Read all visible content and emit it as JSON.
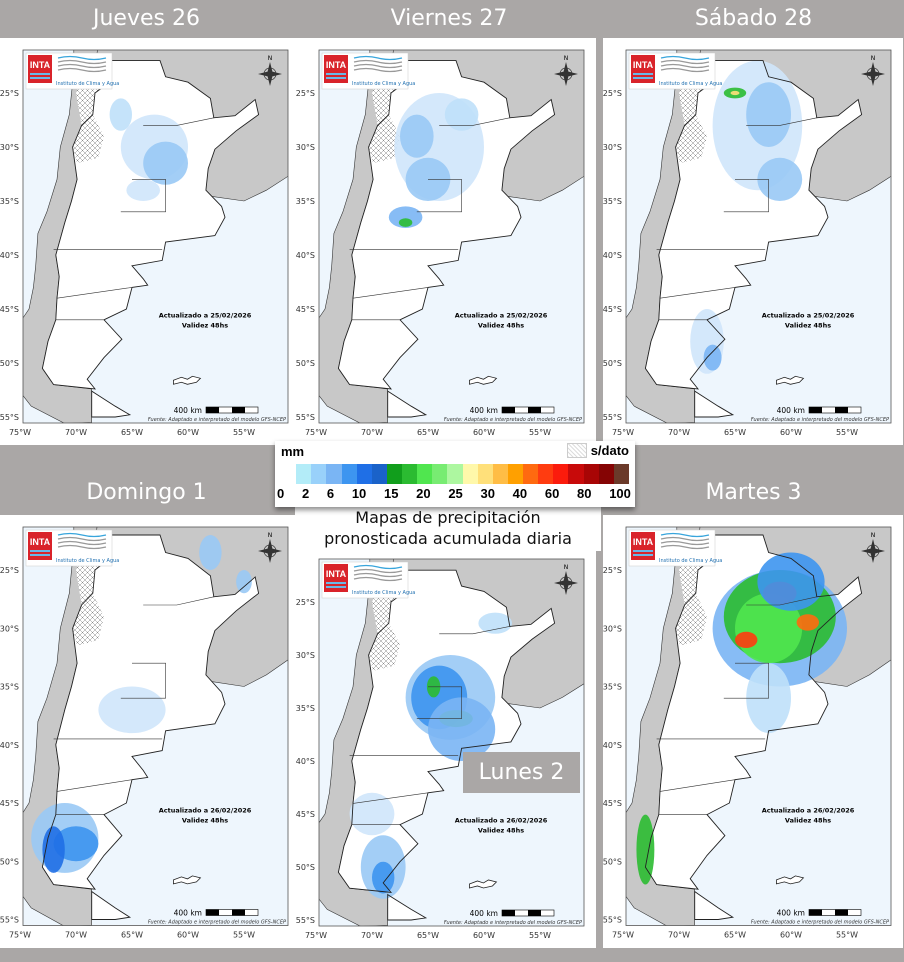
{
  "panels": [
    {
      "title": "Jueves 26",
      "updated": "Actualizado a 25/02/2026",
      "validity": "Validez 48hs"
    },
    {
      "title": "Viernes 27",
      "updated": "Actualizado a 25/02/2026",
      "validity": "Validez 48hs"
    },
    {
      "title": "Sábado 28",
      "updated": "Actualizado a 25/02/2026",
      "validity": "Validez 48hs"
    },
    {
      "title": "Domingo 1",
      "updated": "Actualizado a 26/02/2026",
      "validity": "Validez 48hs"
    },
    {
      "title": "Lunes 2",
      "updated": "Actualizado a 26/02/2026",
      "validity": "Validez 48hs"
    },
    {
      "title": "Martes 3",
      "updated": "Actualizado a 26/02/2026",
      "validity": "Validez 48hs"
    }
  ],
  "map": {
    "logo_text": "INTA",
    "institute": "Instituto de Clima y Agua",
    "north": "N",
    "scale": "400 km",
    "source": "Fuente: Adaptado e interpretado del modelo GFS-NCEP",
    "lat_labels": [
      "25°S",
      "30°S",
      "35°S",
      "40°S",
      "45°S",
      "50°S",
      "55°S"
    ],
    "lon_labels": [
      "75°W",
      "70°W",
      "65°W",
      "60°W",
      "55°W"
    ]
  },
  "legend": {
    "unit": "mm",
    "no_data": "s/dato",
    "labels": [
      "0",
      "2",
      "6",
      "10",
      "15",
      "20",
      "25",
      "30",
      "40",
      "60",
      "80",
      "100"
    ],
    "colors": [
      "#ffffff",
      "#b3ecf8",
      "#99d1fa",
      "#7ab5f4",
      "#3d95f0",
      "#1f6fe6",
      "#1a62c9",
      "#119e1c",
      "#2bbb31",
      "#50e64f",
      "#78ec72",
      "#adf7a0",
      "#fff8aa",
      "#ffe07a",
      "#ffbd45",
      "#ffa000",
      "#ff6a10",
      "#ff3c10",
      "#fb1b0c",
      "#c80a0a",
      "#a80505",
      "#850404",
      "#6b3a2a"
    ],
    "title_line1": "Mapas de precipitación",
    "title_line2": "pronosticada acumulada diaria"
  }
}
